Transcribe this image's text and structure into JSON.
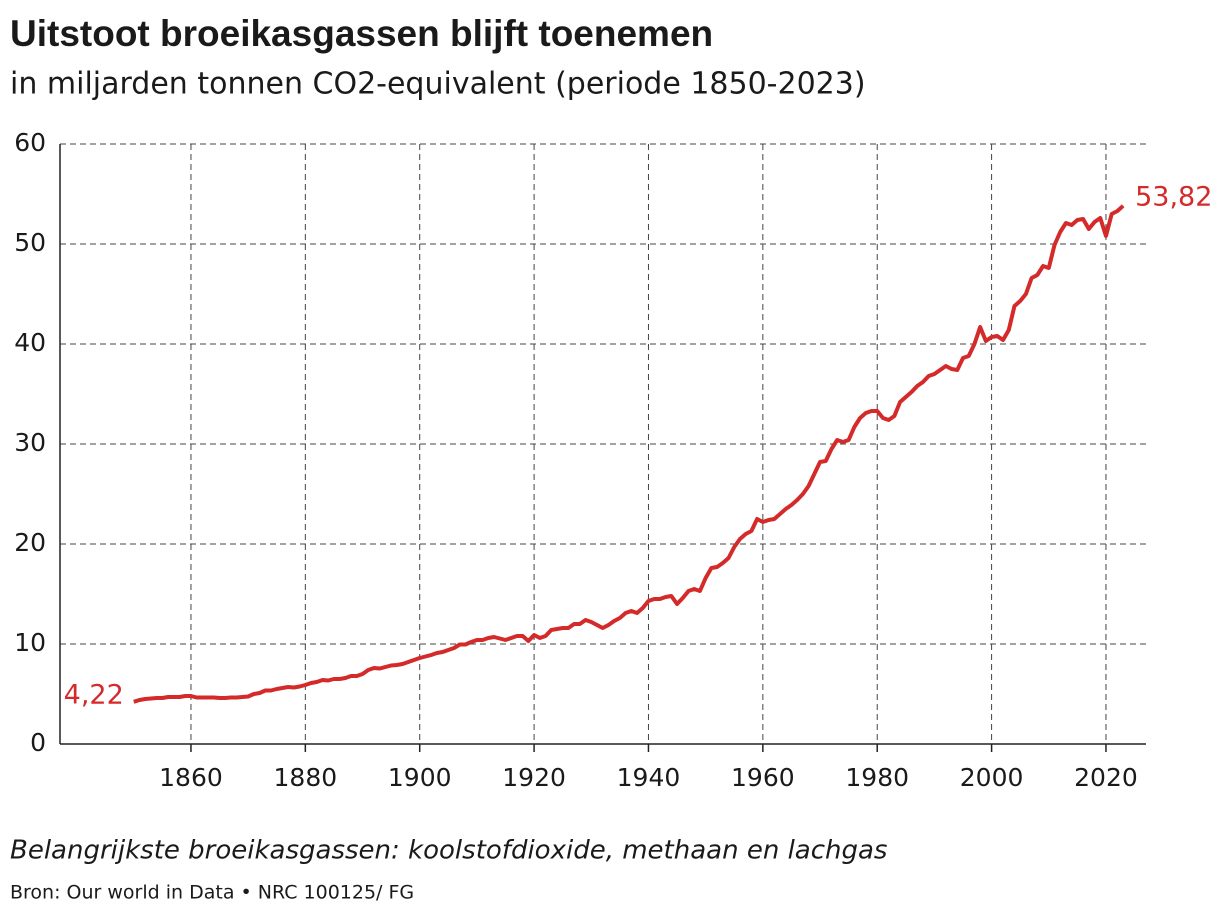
{
  "chart_data": {
    "type": "line",
    "title": "Uitstoot broeikasgassen blijft toenemen",
    "subtitle": "in miljarden tonnen CO2-equivalent (periode 1850-2023)",
    "note": "Belangrijkste broeikasgassen: koolstofdioxide, methaan en lachgas",
    "source": "Bron: Our world in Data • NRC 100125/ FG",
    "color": "#d42a2a",
    "grid": true,
    "x": [
      1850,
      1851,
      1852,
      1853,
      1854,
      1855,
      1856,
      1857,
      1858,
      1859,
      1860,
      1861,
      1862,
      1863,
      1864,
      1865,
      1866,
      1867,
      1868,
      1869,
      1870,
      1871,
      1872,
      1873,
      1874,
      1875,
      1876,
      1877,
      1878,
      1879,
      1880,
      1881,
      1882,
      1883,
      1884,
      1885,
      1886,
      1887,
      1888,
      1889,
      1890,
      1891,
      1892,
      1893,
      1894,
      1895,
      1896,
      1897,
      1898,
      1899,
      1900,
      1901,
      1902,
      1903,
      1904,
      1905,
      1906,
      1907,
      1908,
      1909,
      1910,
      1911,
      1912,
      1913,
      1914,
      1915,
      1916,
      1917,
      1918,
      1919,
      1920,
      1921,
      1922,
      1923,
      1924,
      1925,
      1926,
      1927,
      1928,
      1929,
      1930,
      1931,
      1932,
      1933,
      1934,
      1935,
      1936,
      1937,
      1938,
      1939,
      1940,
      1941,
      1942,
      1943,
      1944,
      1945,
      1946,
      1947,
      1948,
      1949,
      1950,
      1951,
      1952,
      1953,
      1954,
      1955,
      1956,
      1957,
      1958,
      1959,
      1960,
      1961,
      1962,
      1963,
      1964,
      1965,
      1966,
      1967,
      1968,
      1969,
      1970,
      1971,
      1972,
      1973,
      1974,
      1975,
      1976,
      1977,
      1978,
      1979,
      1980,
      1981,
      1982,
      1983,
      1984,
      1985,
      1986,
      1987,
      1988,
      1989,
      1990,
      1991,
      1992,
      1993,
      1994,
      1995,
      1996,
      1997,
      1998,
      1999,
      2000,
      2001,
      2002,
      2003,
      2004,
      2005,
      2006,
      2007,
      2008,
      2009,
      2010,
      2011,
      2012,
      2013,
      2014,
      2015,
      2016,
      2017,
      2018,
      2019,
      2020,
      2021,
      2022,
      2023
    ],
    "values": [
      4.22,
      4.4,
      4.5,
      4.55,
      4.6,
      4.6,
      4.7,
      4.7,
      4.7,
      4.8,
      4.8,
      4.65,
      4.65,
      4.65,
      4.65,
      4.6,
      4.6,
      4.65,
      4.65,
      4.7,
      4.75,
      5.0,
      5.1,
      5.35,
      5.35,
      5.5,
      5.6,
      5.7,
      5.65,
      5.75,
      5.9,
      6.1,
      6.2,
      6.4,
      6.35,
      6.5,
      6.5,
      6.6,
      6.8,
      6.8,
      7.0,
      7.4,
      7.6,
      7.55,
      7.7,
      7.85,
      7.9,
      8.0,
      8.2,
      8.4,
      8.6,
      8.75,
      8.9,
      9.1,
      9.2,
      9.4,
      9.6,
      9.95,
      9.95,
      10.2,
      10.4,
      10.4,
      10.6,
      10.7,
      10.55,
      10.4,
      10.6,
      10.8,
      10.8,
      10.3,
      10.9,
      10.6,
      10.8,
      11.4,
      11.5,
      11.6,
      11.6,
      12.0,
      12.0,
      12.4,
      12.2,
      11.9,
      11.6,
      11.9,
      12.3,
      12.6,
      13.1,
      13.3,
      13.1,
      13.6,
      14.3,
      14.5,
      14.5,
      14.7,
      14.8,
      14.0,
      14.6,
      15.3,
      15.5,
      15.3,
      16.6,
      17.6,
      17.7,
      18.1,
      18.6,
      19.7,
      20.5,
      21.0,
      21.3,
      22.5,
      22.2,
      22.4,
      22.5,
      23.0,
      23.5,
      23.9,
      24.4,
      25.0,
      25.8,
      27.0,
      28.2,
      28.3,
      29.5,
      30.4,
      30.2,
      30.4,
      31.7,
      32.6,
      33.1,
      33.3,
      33.3,
      32.6,
      32.4,
      32.8,
      34.2,
      34.7,
      35.2,
      35.8,
      36.2,
      36.8,
      37.0,
      37.4,
      37.8,
      37.5,
      37.4,
      38.6,
      38.8,
      40.0,
      41.7,
      40.3,
      40.7,
      40.8,
      40.4,
      41.4,
      43.8,
      44.3,
      45.0,
      46.6,
      46.9,
      47.8,
      47.6,
      49.9,
      51.2,
      52.1,
      51.9,
      52.4,
      52.5,
      51.5,
      52.2,
      52.6,
      50.8,
      53.0,
      53.3,
      53.82
    ],
    "annotations": [
      {
        "text": "4,22",
        "x": 1850,
        "y": 4.22
      },
      {
        "text": "53,82",
        "x": 2023,
        "y": 53.82
      }
    ],
    "xlim": [
      1837.1,
      2027.0
    ],
    "xticks": [
      1860,
      1880,
      1900,
      1920,
      1940,
      1960,
      1980,
      2000,
      2020
    ],
    "ylim": [
      0,
      60
    ],
    "yticks": [
      0,
      10,
      20,
      30,
      40,
      50,
      60
    ]
  }
}
